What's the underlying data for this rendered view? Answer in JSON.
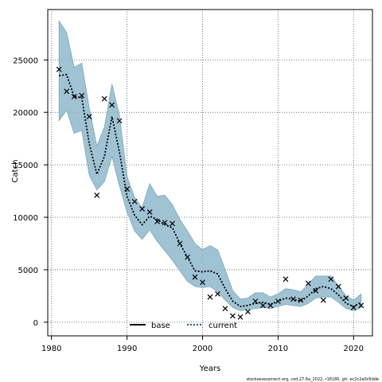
{
  "chart_data": {
    "type": "line",
    "xlabel": "Years",
    "ylabel": "Catch",
    "xlim": [
      1979.5,
      2022.5
    ],
    "ylim": [
      -1300,
      29800
    ],
    "x_ticks": [
      1980,
      1990,
      2000,
      2010,
      2020
    ],
    "y_ticks": [
      0,
      5000,
      10000,
      15000,
      20000,
      25000
    ],
    "x_tick_labels": [
      "1980",
      "1990",
      "2000",
      "2010",
      "2020"
    ],
    "y_tick_labels": [
      "0",
      "5000",
      "10000",
      "15000",
      "20000",
      "25000"
    ],
    "grid": true,
    "legend": {
      "placement": "bottom-center",
      "entries": [
        "base",
        "current"
      ]
    },
    "footnote": "stockassessment.org, cod.27.6a_2022, r16180, git: ec2c2a0c6dde",
    "years": [
      1981,
      1982,
      1983,
      1984,
      1985,
      1986,
      1987,
      1988,
      1989,
      1990,
      1991,
      1992,
      1993,
      1994,
      1995,
      1996,
      1997,
      1998,
      1999,
      2000,
      2001,
      2002,
      2003,
      2004,
      2005,
      2006,
      2007,
      2008,
      2009,
      2010,
      2011,
      2012,
      2013,
      2014,
      2015,
      2016,
      2017,
      2018,
      2019,
      2020,
      2021
    ],
    "series": [
      {
        "name": "current",
        "style": "dotted",
        "color": "#000000",
        "values": [
          23500,
          23600,
          21500,
          21400,
          17000,
          14100,
          15800,
          19600,
          16200,
          12000,
          10200,
          9300,
          10100,
          9800,
          9300,
          9000,
          7500,
          6200,
          4900,
          4800,
          4900,
          4600,
          3200,
          2000,
          1500,
          1600,
          1800,
          1900,
          1700,
          2000,
          2300,
          2200,
          2000,
          2500,
          3200,
          3400,
          3200,
          2600,
          1800,
          1500,
          1900
        ]
      }
    ],
    "ci_band": {
      "color": "#8fb8cc",
      "lower": [
        19200,
        20200,
        18000,
        18300,
        14000,
        12600,
        13400,
        15800,
        13000,
        10500,
        8700,
        7900,
        8800,
        7700,
        6800,
        5900,
        4900,
        3900,
        3400,
        3300,
        3400,
        2900,
        2100,
        1400,
        1100,
        1200,
        1300,
        1400,
        1300,
        1500,
        1700,
        1600,
        1500,
        1800,
        2300,
        2400,
        2400,
        1900,
        1300,
        1100,
        1400
      ],
      "upper": [
        28700,
        27600,
        24300,
        24700,
        20400,
        16800,
        18600,
        22700,
        19700,
        13900,
        11900,
        10900,
        13200,
        12000,
        12100,
        11200,
        9800,
        8700,
        7500,
        6900,
        7300,
        6900,
        5000,
        3000,
        2200,
        2300,
        2800,
        2800,
        2400,
        2700,
        3200,
        3100,
        2900,
        3600,
        4400,
        4400,
        4400,
        3500,
        2500,
        2100,
        2700
      ]
    },
    "observed": {
      "marker": "x",
      "values": [
        24100,
        22000,
        21500,
        21600,
        19600,
        12100,
        21300,
        20700,
        19200,
        12700,
        11500,
        10800,
        10500,
        9600,
        9500,
        9400,
        7500,
        6200,
        4300,
        3800,
        2400,
        2700,
        1300,
        600,
        500,
        1000,
        2000,
        1600,
        1600,
        2000,
        4100,
        2200,
        2100,
        3700,
        3000,
        2100,
        4100,
        3400,
        2300,
        1400,
        1600
      ]
    }
  }
}
